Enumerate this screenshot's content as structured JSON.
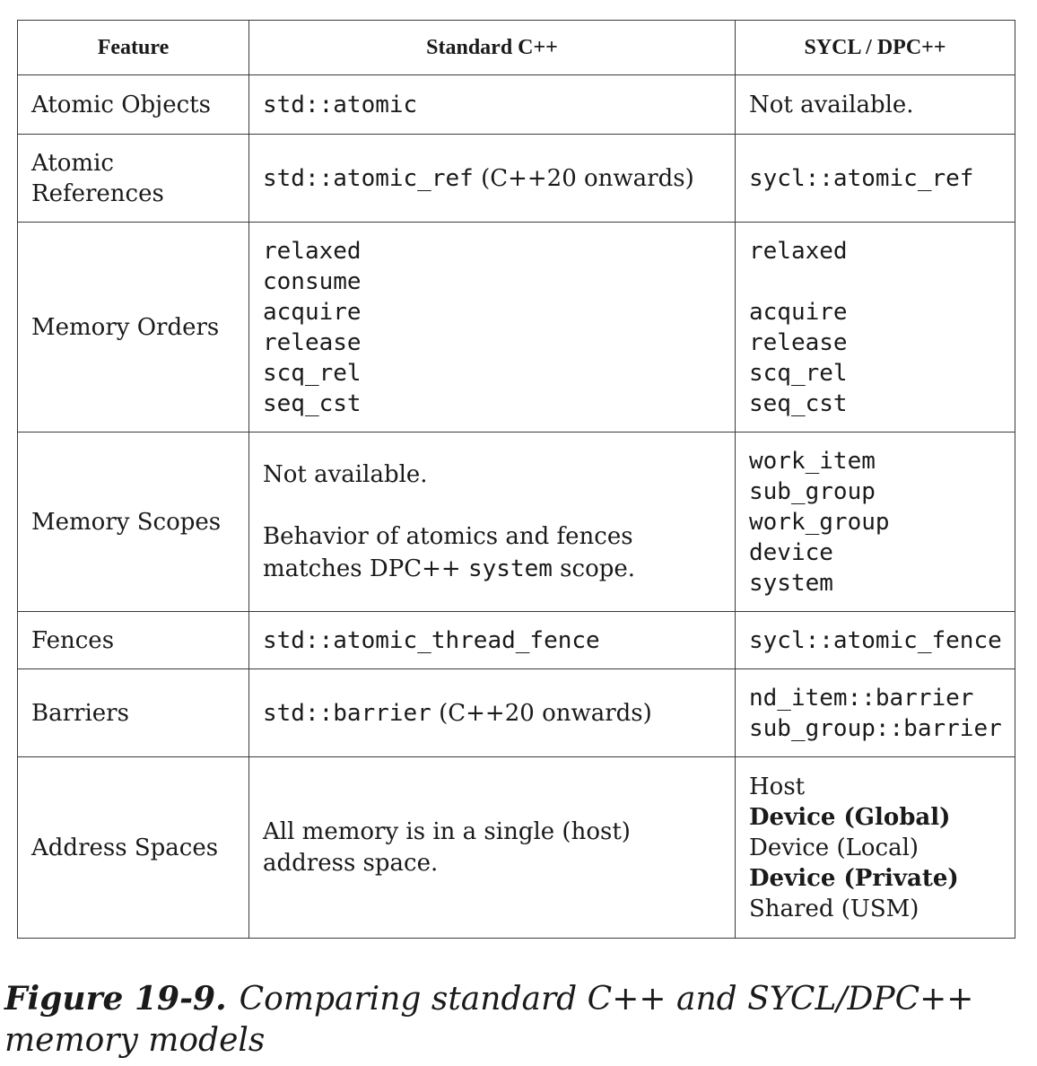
{
  "table": {
    "headers": [
      "Feature",
      "Standard C++",
      "SYCL / DPC++"
    ],
    "rows": [
      {
        "feature": "Atomic Objects",
        "std": [
          {
            "t": "std::atomic",
            "m": true
          }
        ],
        "sycl": [
          {
            "t": "Not available."
          }
        ]
      },
      {
        "feature": "Atomic References",
        "std": [
          {
            "t": "std::atomic_ref",
            "m": true
          },
          {
            "t": " (C++20 onwards)"
          }
        ],
        "sycl": [
          {
            "t": "sycl::atomic_ref",
            "m": true
          }
        ]
      },
      {
        "feature": "Memory Orders",
        "std_lines": [
          "relaxed",
          "consume",
          "acquire",
          "release",
          "scq_rel",
          "seq_cst"
        ],
        "sycl_lines": [
          "relaxed",
          "",
          "acquire",
          "release",
          "scq_rel",
          "seq_cst"
        ]
      },
      {
        "feature": "Memory Scopes",
        "std_p1": "Not available.",
        "std_p2_a": "Behavior of atomics and fences matches DPC++ ",
        "std_p2_code": "system",
        "std_p2_b": " scope.",
        "sycl_lines": [
          "work_item",
          "sub_group",
          "work_group",
          "device",
          "system"
        ]
      },
      {
        "feature": "Fences",
        "std": [
          {
            "t": "std::atomic_thread_fence",
            "m": true
          }
        ],
        "sycl": [
          {
            "t": "sycl::atomic_fence",
            "m": true
          }
        ]
      },
      {
        "feature": "Barriers",
        "std": [
          {
            "t": "std::barrier",
            "m": true
          },
          {
            "t": " (C++20 onwards)"
          }
        ],
        "sycl_lines": [
          "nd_item::barrier",
          "sub_group::barrier"
        ]
      },
      {
        "feature": "Address Spaces",
        "std_text": "All memory is in a single (host) address space.",
        "sycl_lines": [
          "Host",
          "Device (Global)",
          "Device (Local)",
          "Device (Private)",
          "Shared (USM)"
        ]
      }
    ]
  },
  "caption": {
    "label": "Figure 19-9.",
    "text": "Comparing standard C++ and SYCL/DPC++ memory models"
  }
}
